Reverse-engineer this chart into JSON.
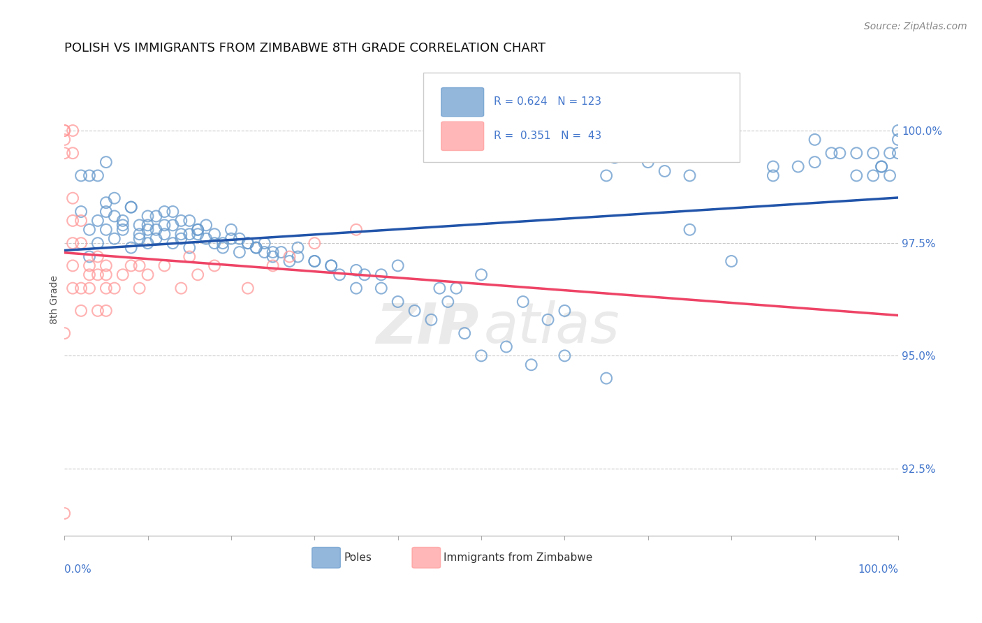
{
  "title": "POLISH VS IMMIGRANTS FROM ZIMBABWE 8TH GRADE CORRELATION CHART",
  "source_text": "Source: ZipAtlas.com",
  "ylabel": "8th Grade",
  "y_ticks": [
    92.5,
    95.0,
    97.5,
    100.0
  ],
  "y_tick_labels": [
    "92.5%",
    "95.0%",
    "97.5%",
    "100.0%"
  ],
  "x_range": [
    0.0,
    1.0
  ],
  "y_range": [
    91.0,
    101.5
  ],
  "legend_blue_r": "R = 0.624",
  "legend_blue_n": "N = 123",
  "legend_pink_r": "R = 0.351",
  "legend_pink_n": "N =  43",
  "blue_color": "#6699CC",
  "pink_color": "#FF9999",
  "blue_line_color": "#2255AA",
  "pink_line_color": "#EE4466",
  "blue_points_x": [
    0.02,
    0.03,
    0.04,
    0.05,
    0.05,
    0.06,
    0.07,
    0.08,
    0.09,
    0.1,
    0.1,
    0.11,
    0.12,
    0.13,
    0.14,
    0.15,
    0.16,
    0.17,
    0.18,
    0.19,
    0.2,
    0.21,
    0.22,
    0.23,
    0.24,
    0.25,
    0.26,
    0.27,
    0.28,
    0.3,
    0.32,
    0.33,
    0.35,
    0.36,
    0.38,
    0.4,
    0.42,
    0.44,
    0.46,
    0.48,
    0.5,
    0.53,
    0.56,
    0.6,
    0.65,
    0.7,
    0.75,
    0.8,
    0.85,
    0.9,
    0.92,
    0.95,
    0.97,
    0.98,
    0.99,
    1.0,
    0.05,
    0.06,
    0.07,
    0.08,
    0.09,
    0.1,
    0.11,
    0.12,
    0.13,
    0.14,
    0.15,
    0.16,
    0.17,
    0.18,
    0.19,
    0.2,
    0.21,
    0.22,
    0.23,
    0.24,
    0.25,
    0.28,
    0.3,
    0.32,
    0.35,
    0.38,
    0.4,
    0.45,
    0.5,
    0.55,
    0.6,
    0.65,
    0.7,
    0.75,
    0.8,
    0.85,
    0.9,
    0.95,
    0.97,
    0.98,
    0.99,
    1.0,
    1.0,
    0.47,
    0.58,
    0.66,
    0.72,
    0.77,
    0.88,
    0.93,
    0.04,
    0.03,
    0.02,
    0.03,
    0.04,
    0.05,
    0.06,
    0.07,
    0.08,
    0.09,
    0.1,
    0.11,
    0.12,
    0.13,
    0.14,
    0.15,
    0.16
  ],
  "blue_points_y": [
    98.2,
    97.8,
    97.5,
    97.8,
    98.2,
    97.6,
    97.8,
    97.4,
    97.6,
    97.5,
    97.8,
    97.6,
    97.7,
    97.5,
    97.6,
    97.4,
    97.7,
    97.6,
    97.5,
    97.4,
    97.6,
    97.3,
    97.5,
    97.4,
    97.5,
    97.2,
    97.3,
    97.1,
    97.4,
    97.1,
    97.0,
    96.8,
    96.5,
    96.8,
    96.5,
    96.2,
    96.0,
    95.8,
    96.2,
    95.5,
    95.0,
    95.2,
    94.8,
    95.0,
    94.5,
    99.5,
    99.0,
    99.5,
    99.0,
    99.3,
    99.5,
    99.0,
    99.5,
    99.2,
    99.5,
    100.0,
    98.4,
    98.1,
    97.9,
    98.3,
    97.7,
    97.9,
    98.1,
    97.9,
    98.2,
    97.7,
    98.0,
    97.8,
    97.9,
    97.7,
    97.5,
    97.8,
    97.6,
    97.5,
    97.4,
    97.3,
    97.3,
    97.2,
    97.1,
    97.0,
    96.9,
    96.8,
    97.0,
    96.5,
    96.8,
    96.2,
    96.0,
    99.0,
    99.3,
    97.8,
    97.1,
    99.2,
    99.8,
    99.5,
    99.0,
    99.2,
    99.0,
    99.5,
    99.8,
    96.5,
    95.8,
    99.4,
    99.1,
    99.6,
    99.2,
    99.5,
    99.0,
    99.0,
    99.0,
    97.2,
    98.0,
    99.3,
    98.5,
    98.0,
    98.3,
    97.9,
    98.1,
    97.8,
    98.2,
    97.9,
    98.0,
    97.7,
    97.8
  ],
  "pink_points_x": [
    0.0,
    0.0,
    0.0,
    0.0,
    0.01,
    0.01,
    0.01,
    0.01,
    0.01,
    0.01,
    0.01,
    0.02,
    0.02,
    0.02,
    0.02,
    0.03,
    0.03,
    0.03,
    0.04,
    0.04,
    0.04,
    0.05,
    0.05,
    0.05,
    0.05,
    0.06,
    0.07,
    0.08,
    0.09,
    0.09,
    0.1,
    0.12,
    0.14,
    0.15,
    0.16,
    0.18,
    0.22,
    0.25,
    0.27,
    0.3,
    0.35,
    0.0,
    0.0
  ],
  "pink_points_y": [
    100.0,
    99.8,
    100.0,
    99.5,
    100.0,
    99.5,
    98.5,
    97.5,
    97.0,
    98.0,
    96.5,
    98.0,
    97.5,
    96.5,
    96.0,
    97.0,
    96.8,
    96.5,
    97.2,
    96.8,
    96.0,
    97.0,
    96.8,
    96.5,
    96.0,
    96.5,
    96.8,
    97.0,
    96.5,
    97.0,
    96.8,
    97.0,
    96.5,
    97.2,
    96.8,
    97.0,
    96.5,
    97.0,
    97.2,
    97.5,
    97.8,
    91.5,
    95.5
  ]
}
